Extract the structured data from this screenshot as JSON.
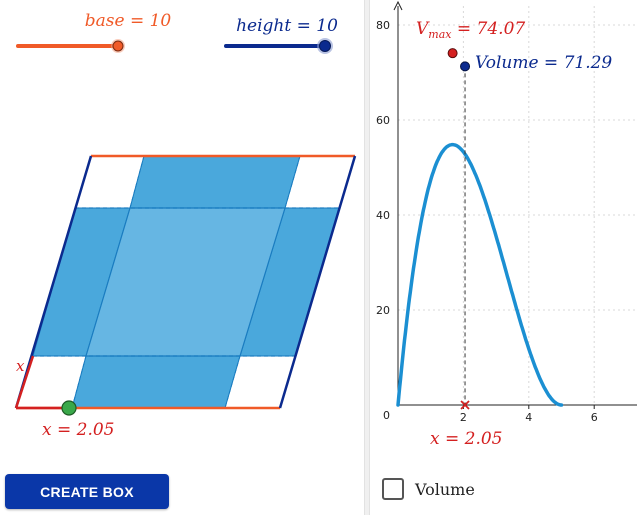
{
  "sliders": {
    "base": {
      "name": "base",
      "value": "10",
      "label": "base = 10",
      "fraction": 0.83,
      "color": "#f05a28"
    },
    "height": {
      "name": "height",
      "value": "10",
      "label": "height = 10",
      "fraction": 1.0,
      "color": "#0b2a8e"
    }
  },
  "net": {
    "x_label": "x = 2.05",
    "corner_label": "x",
    "x_value": 2.05
  },
  "graph": {
    "vmax_label": "V",
    "vmax_sub": "max",
    "vmax_eq": " = 74.07",
    "volume_label": "Volume = 71.29",
    "x_label": "x = 2.05",
    "y_ticks": [
      "80",
      "60",
      "40",
      "20",
      "0"
    ],
    "x_ticks": [
      "2",
      "4",
      "6"
    ]
  },
  "chart_data": {
    "type": "line",
    "title": "",
    "xlabel": "",
    "ylabel": "",
    "xlim": [
      -0.3,
      7.5
    ],
    "ylim": [
      0,
      84
    ],
    "x_ticks": [
      2,
      4,
      6
    ],
    "y_ticks": [
      0,
      20,
      40,
      60,
      80
    ],
    "series": [
      {
        "name": "",
        "function": "x*(10-2x)^2*0.74",
        "domain": [
          0,
          5
        ],
        "color": "#1b8fd2"
      }
    ],
    "points": [
      {
        "label": "Vmax = 74.07",
        "x": 1.67,
        "y": 74.07,
        "color": "#d42020"
      },
      {
        "label": "Volume = 71.29",
        "x": 2.05,
        "y": 71.29,
        "color": "#0b2a8e"
      }
    ],
    "marker_x": 2.05
  },
  "controls": {
    "create_box_label": "CREATE BOX",
    "volume_checkbox_label": "Volume",
    "volume_checked": false
  },
  "colors": {
    "orange": "#f05a28",
    "navy": "#0b2a8e",
    "red": "#d42020",
    "blue_fill": "#4aa8dc",
    "blue_fill_light": "#66b6e3",
    "curve": "#1b8fd2",
    "green_point": "#3aa84a"
  }
}
